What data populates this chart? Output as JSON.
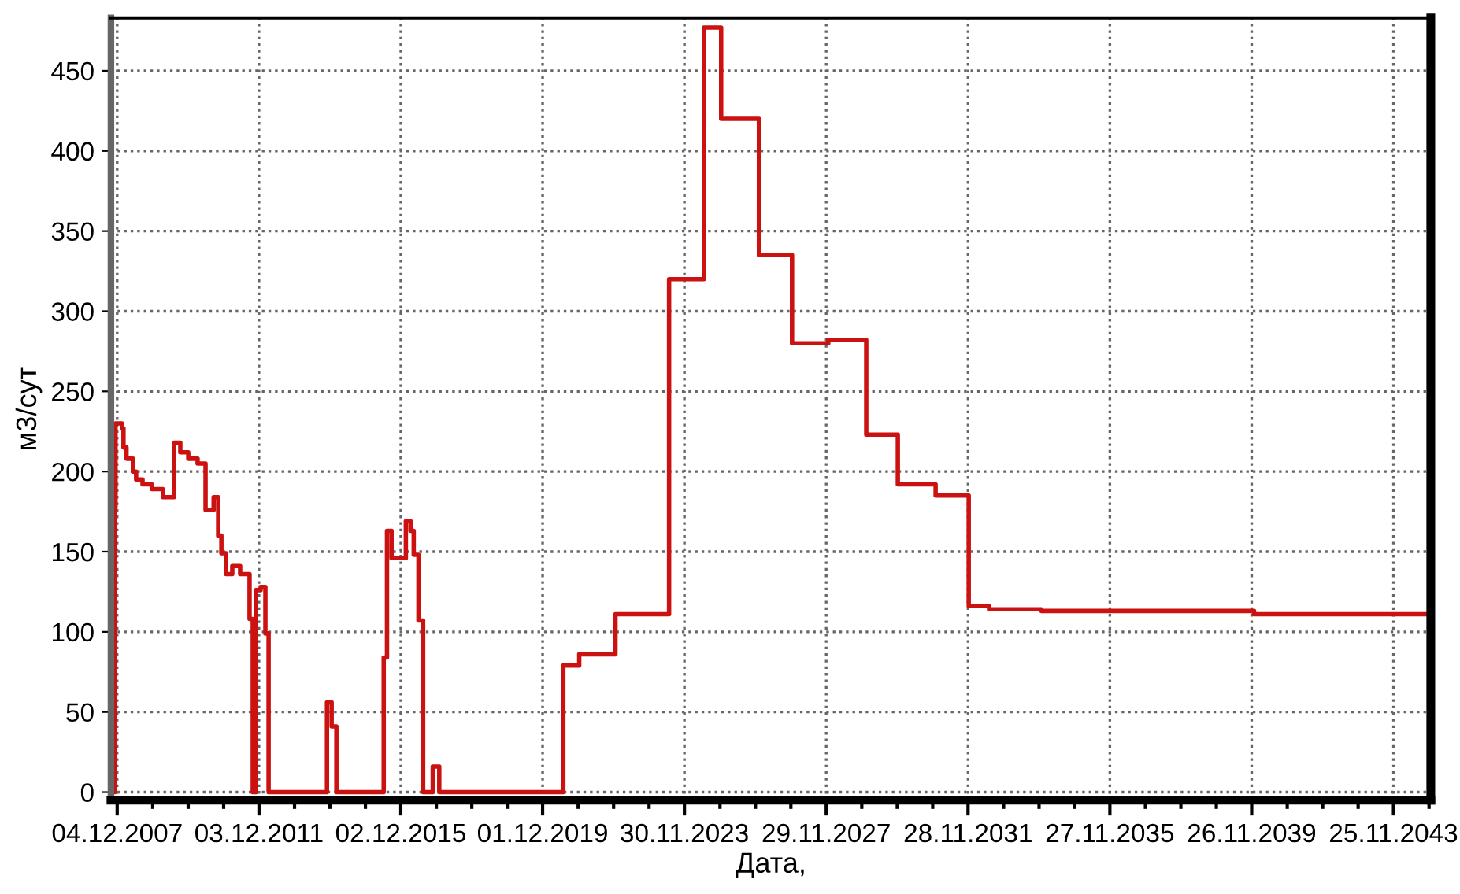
{
  "chart_data": {
    "type": "step",
    "xlabel": "Дата,",
    "ylabel": "м3/сут",
    "grid": true,
    "legend": false,
    "xlim": [
      "2007-10-01",
      "2044-12-13"
    ],
    "ylim": [
      -5,
      483
    ],
    "xticks": [
      {
        "value": "2007-12-04",
        "label": "04.12.2007"
      },
      {
        "value": "2008-12-04",
        "label": null
      },
      {
        "value": "2009-12-04",
        "label": null
      },
      {
        "value": "2010-12-04",
        "label": null
      },
      {
        "value": "2011-12-03",
        "label": "03.12.2011"
      },
      {
        "value": "2012-12-03",
        "label": null
      },
      {
        "value": "2013-12-03",
        "label": null
      },
      {
        "value": "2014-12-03",
        "label": null
      },
      {
        "value": "2015-12-02",
        "label": "02.12.2015"
      },
      {
        "value": "2016-12-02",
        "label": null
      },
      {
        "value": "2017-12-02",
        "label": null
      },
      {
        "value": "2018-12-02",
        "label": null
      },
      {
        "value": "2019-12-01",
        "label": "01.12.2019"
      },
      {
        "value": "2020-12-01",
        "label": null
      },
      {
        "value": "2021-12-01",
        "label": null
      },
      {
        "value": "2022-12-01",
        "label": null
      },
      {
        "value": "2023-11-30",
        "label": "30.11.2023"
      },
      {
        "value": "2024-11-30",
        "label": null
      },
      {
        "value": "2025-11-30",
        "label": null
      },
      {
        "value": "2026-11-30",
        "label": null
      },
      {
        "value": "2027-11-29",
        "label": "29.11.2027"
      },
      {
        "value": "2028-11-29",
        "label": null
      },
      {
        "value": "2029-11-29",
        "label": null
      },
      {
        "value": "2030-11-29",
        "label": null
      },
      {
        "value": "2031-11-28",
        "label": "28.11.2031"
      },
      {
        "value": "2032-11-28",
        "label": null
      },
      {
        "value": "2033-11-28",
        "label": null
      },
      {
        "value": "2034-11-28",
        "label": null
      },
      {
        "value": "2035-11-27",
        "label": "27.11.2035"
      },
      {
        "value": "2036-11-27",
        "label": null
      },
      {
        "value": "2037-11-27",
        "label": null
      },
      {
        "value": "2038-11-27",
        "label": null
      },
      {
        "value": "2039-11-26",
        "label": "26.11.2039"
      },
      {
        "value": "2040-11-26",
        "label": null
      },
      {
        "value": "2041-11-26",
        "label": null
      },
      {
        "value": "2042-11-26",
        "label": null
      },
      {
        "value": "2043-11-25",
        "label": "25.11.2043"
      },
      {
        "value": "2044-11-25",
        "label": null
      }
    ],
    "yticks": [
      0,
      50,
      100,
      150,
      200,
      250,
      300,
      350,
      400,
      450
    ],
    "x": [
      "2007-11-01",
      "2007-11-09",
      "2007-11-17",
      "2008-01-23",
      "2008-02-07",
      "2008-03-09",
      "2008-05-14",
      "2008-06-16",
      "2008-08-21",
      "2008-11-24",
      "2009-03-18",
      "2009-07-12",
      "2009-09-14",
      "2009-12-05",
      "2010-03-11",
      "2010-06-01",
      "2010-08-23",
      "2010-10-09",
      "2010-11-11",
      "2010-12-29",
      "2011-03-03",
      "2011-05-23",
      "2011-08-28",
      "2011-09-30",
      "2011-11-02",
      "2011-12-20",
      "2012-02-07",
      "2012-03-11",
      "2012-04-13",
      "2013-11-02",
      "2013-12-20",
      "2014-02-07",
      "2015-06-09",
      "2015-07-13",
      "2015-08-29",
      "2015-11-17",
      "2016-01-23",
      "2016-03-11",
      "2016-04-13",
      "2016-06-01",
      "2016-07-19",
      "2016-10-26",
      "2017-01-01",
      "2020-07-01",
      "2020-12-12",
      "2021-12-20",
      "2023-06-25",
      "2024-06-17",
      "2024-12-12",
      "2026-01-05",
      "2026-12-12",
      "2027-12-20",
      "2029-01-14",
      "2029-12-05",
      "2030-12-29",
      "2031-12-05",
      "2032-07-01",
      "2033-12-20",
      "2039-12-20",
      "2044-11-10"
    ],
    "series": [
      {
        "color": "#cc1111",
        "values": [
          0,
          178,
          230,
          227,
          215,
          208,
          200,
          195,
          192,
          189,
          184,
          218,
          212,
          208,
          205,
          176,
          184,
          160,
          149,
          136,
          141,
          136,
          108,
          0,
          126,
          128,
          99,
          0,
          0,
          56,
          41,
          0,
          84,
          163,
          146,
          146,
          169,
          163,
          148,
          107,
          0,
          16,
          0,
          79,
          86,
          111,
          320,
          477,
          420,
          335,
          280,
          282,
          223,
          192,
          185,
          116,
          114,
          113,
          111,
          111
        ]
      }
    ]
  }
}
